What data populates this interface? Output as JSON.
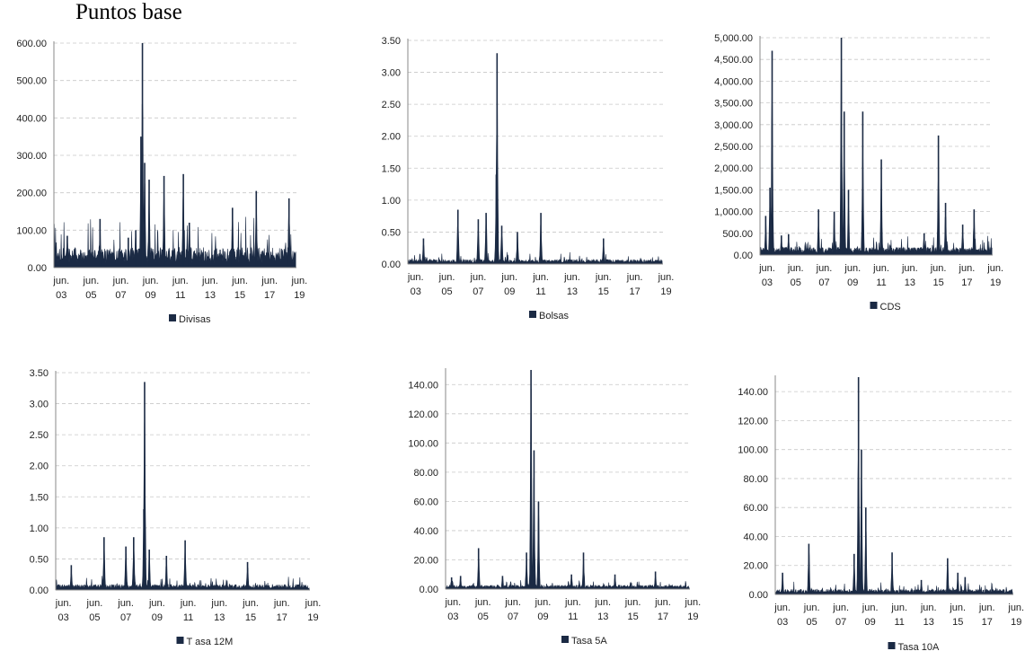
{
  "page_title": "Puntos base",
  "x_axis_labels": [
    {
      "month": "jun.",
      "year": "03"
    },
    {
      "month": "jun.",
      "year": "05"
    },
    {
      "month": "jun.",
      "year": "07"
    },
    {
      "month": "jun.",
      "year": "09"
    },
    {
      "month": "jun.",
      "year": "11"
    },
    {
      "month": "jun.",
      "year": "13"
    },
    {
      "month": "jun.",
      "year": "15"
    },
    {
      "month": "jun.",
      "year": "17"
    },
    {
      "month": "jun.",
      "year": "19"
    }
  ],
  "colors": {
    "series": "#1b2a44",
    "grid": "#c8c8c8",
    "axis": "#888888"
  },
  "chart_data": [
    {
      "type": "area",
      "legend": "Divisas",
      "x_range": [
        "jun. 03",
        "jun. 19"
      ],
      "ylim": [
        0,
        600
      ],
      "yticks": [
        "0.00",
        "100.00",
        "200.00",
        "300.00",
        "400.00",
        "500.00",
        "600.00"
      ],
      "grid": true,
      "legend_position": "bottom",
      "baseline": 30,
      "peaks": [
        {
          "x": 2003.9,
          "y": 85
        },
        {
          "x": 2006.1,
          "y": 130
        },
        {
          "x": 2008.0,
          "y": 80
        },
        {
          "x": 2008.5,
          "y": 100
        },
        {
          "x": 2008.85,
          "y": 350
        },
        {
          "x": 2008.95,
          "y": 600
        },
        {
          "x": 2009.1,
          "y": 280
        },
        {
          "x": 2009.4,
          "y": 235
        },
        {
          "x": 2010.4,
          "y": 245
        },
        {
          "x": 2011.7,
          "y": 250
        },
        {
          "x": 2012.1,
          "y": 120
        },
        {
          "x": 2015.0,
          "y": 160
        },
        {
          "x": 2016.6,
          "y": 205
        },
        {
          "x": 2018.8,
          "y": 185
        }
      ]
    },
    {
      "type": "area",
      "legend": "Bolsas",
      "x_range": [
        "jun. 03",
        "jun. 19"
      ],
      "ylim": [
        0,
        3.5
      ],
      "yticks": [
        "0.00",
        "0.50",
        "1.00",
        "1.50",
        "2.00",
        "2.50",
        "3.00",
        "3.50"
      ],
      "grid": true,
      "legend_position": "bottom",
      "baseline": 0.04,
      "peaks": [
        {
          "x": 2004.0,
          "y": 0.4
        },
        {
          "x": 2006.2,
          "y": 0.85
        },
        {
          "x": 2007.5,
          "y": 0.7
        },
        {
          "x": 2008.0,
          "y": 0.8
        },
        {
          "x": 2008.7,
          "y": 3.3
        },
        {
          "x": 2008.65,
          "y": 1.4
        },
        {
          "x": 2009.0,
          "y": 0.6
        },
        {
          "x": 2010.0,
          "y": 0.5
        },
        {
          "x": 2011.5,
          "y": 0.8
        },
        {
          "x": 2015.5,
          "y": 0.4
        }
      ]
    },
    {
      "type": "area",
      "legend": "CDS",
      "x_range": [
        "jun. 03",
        "jun. 19"
      ],
      "ylim": [
        0,
        5000
      ],
      "yticks": [
        "0.00",
        "500.00",
        "1,000.00",
        "1,500.00",
        "2,000.00",
        "2,500.00",
        "3,000.00",
        "3,500.00",
        "4,000.00",
        "4,500.00",
        "5,000.00"
      ],
      "grid": true,
      "legend_position": "bottom",
      "baseline": 100,
      "peaks": [
        {
          "x": 2003.4,
          "y": 900
        },
        {
          "x": 2003.7,
          "y": 1550
        },
        {
          "x": 2003.85,
          "y": 4700
        },
        {
          "x": 2004.5,
          "y": 450
        },
        {
          "x": 2005.0,
          "y": 480
        },
        {
          "x": 2007.1,
          "y": 1050
        },
        {
          "x": 2008.2,
          "y": 1000
        },
        {
          "x": 2008.7,
          "y": 5000
        },
        {
          "x": 2008.9,
          "y": 3300
        },
        {
          "x": 2009.2,
          "y": 1500
        },
        {
          "x": 2010.2,
          "y": 3300
        },
        {
          "x": 2011.5,
          "y": 2200
        },
        {
          "x": 2014.5,
          "y": 500
        },
        {
          "x": 2015.5,
          "y": 2750
        },
        {
          "x": 2016.0,
          "y": 1200
        },
        {
          "x": 2017.2,
          "y": 700
        },
        {
          "x": 2018.0,
          "y": 1050
        }
      ]
    },
    {
      "type": "area",
      "legend": "T asa 12M",
      "x_range": [
        "jun. 03",
        "jun. 19"
      ],
      "ylim": [
        0,
        3.5
      ],
      "yticks": [
        "0.00",
        "0.50",
        "1.00",
        "1.50",
        "2.00",
        "2.50",
        "3.00",
        "3.50"
      ],
      "grid": true,
      "legend_position": "bottom",
      "baseline": 0.05,
      "peaks": [
        {
          "x": 2004.0,
          "y": 0.4
        },
        {
          "x": 2006.1,
          "y": 0.85
        },
        {
          "x": 2007.5,
          "y": 0.7
        },
        {
          "x": 2008.0,
          "y": 0.85
        },
        {
          "x": 2008.7,
          "y": 3.35
        },
        {
          "x": 2008.65,
          "y": 1.3
        },
        {
          "x": 2009.0,
          "y": 0.65
        },
        {
          "x": 2010.1,
          "y": 0.55
        },
        {
          "x": 2011.3,
          "y": 0.8
        },
        {
          "x": 2015.3,
          "y": 0.45
        }
      ]
    },
    {
      "type": "area",
      "legend": "Tasa 5A",
      "x_range": [
        "jun. 03",
        "jun. 19"
      ],
      "ylim": [
        0,
        150
      ],
      "yticks": [
        "0.00",
        "20.00",
        "40.00",
        "60.00",
        "80.00",
        "100.00",
        "120.00",
        "140.00"
      ],
      "grid": true,
      "legend_position": "bottom",
      "baseline": 1.5,
      "peaks": [
        {
          "x": 2003.4,
          "y": 8
        },
        {
          "x": 2004.0,
          "y": 9
        },
        {
          "x": 2005.2,
          "y": 28
        },
        {
          "x": 2006.8,
          "y": 9
        },
        {
          "x": 2008.4,
          "y": 25
        },
        {
          "x": 2008.7,
          "y": 150
        },
        {
          "x": 2008.9,
          "y": 95
        },
        {
          "x": 2009.2,
          "y": 60
        },
        {
          "x": 2011.4,
          "y": 10
        },
        {
          "x": 2012.2,
          "y": 25
        },
        {
          "x": 2014.3,
          "y": 10
        },
        {
          "x": 2017.0,
          "y": 12
        }
      ]
    },
    {
      "type": "area",
      "legend": "Tasa 10A",
      "x_range": [
        "jun. 03",
        "jun. 19"
      ],
      "ylim": [
        0,
        150
      ],
      "yticks": [
        "0.00",
        "20.00",
        "40.00",
        "60.00",
        "80.00",
        "100.00",
        "120.00",
        "140.00"
      ],
      "grid": true,
      "legend_position": "bottom",
      "baseline": 2,
      "peaks": [
        {
          "x": 2003.5,
          "y": 15
        },
        {
          "x": 2005.3,
          "y": 35
        },
        {
          "x": 2008.4,
          "y": 28
        },
        {
          "x": 2008.7,
          "y": 150
        },
        {
          "x": 2008.9,
          "y": 100
        },
        {
          "x": 2009.2,
          "y": 60
        },
        {
          "x": 2011.0,
          "y": 29
        },
        {
          "x": 2013.0,
          "y": 10
        },
        {
          "x": 2014.8,
          "y": 25
        },
        {
          "x": 2015.5,
          "y": 15
        },
        {
          "x": 2016.0,
          "y": 12
        }
      ]
    }
  ]
}
